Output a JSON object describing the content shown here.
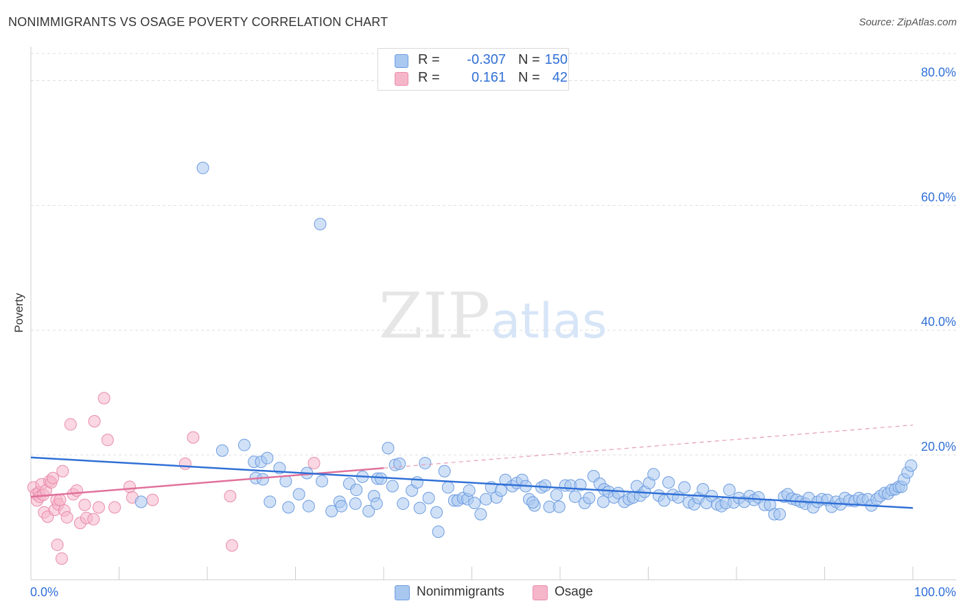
{
  "header": {
    "title": "NONIMMIGRANTS VS OSAGE POVERTY CORRELATION CHART",
    "source": "Source: ZipAtlas.com"
  },
  "watermark": {
    "zip": "ZIP",
    "atlas": "atlas"
  },
  "legend": {
    "rows": [
      {
        "r_label": "R =",
        "r_value": "-0.307",
        "n_label": "N =",
        "n_value": "150",
        "color": "#a9c8f0"
      },
      {
        "r_label": "R =",
        "r_value": "0.161",
        "n_label": "N =",
        "n_value": "42",
        "color": "#f6b6ca"
      }
    ]
  },
  "bottom_legend": {
    "items": [
      {
        "label": "Nonimmigrants",
        "color": "#a9c8f0"
      },
      {
        "label": "Osage",
        "color": "#f6b6ca"
      }
    ]
  },
  "chart_data": {
    "type": "scatter",
    "title": "NONIMMIGRANTS VS OSAGE POVERTY CORRELATION CHART",
    "ylabel": "Poverty",
    "xlabel": "",
    "xlim": [
      0,
      100
    ],
    "ylim": [
      0,
      85
    ],
    "x_tick_labels": [
      "0.0%",
      "100.0%"
    ],
    "y_ticks": [
      20,
      40,
      60,
      80
    ],
    "y_tick_labels": [
      "20.0%",
      "40.0%",
      "60.0%",
      "80.0%"
    ],
    "grid": "horizontal dashed",
    "colors": {
      "nonimmigrants": "#2f6fd6",
      "osage": "#e0709a",
      "tick_label": "#2f6fd6"
    },
    "series": [
      {
        "name": "Nonimmigrants",
        "fill": "#a9c8f0",
        "stroke": "#6b9be0",
        "trend": {
          "x": [
            0,
            100
          ],
          "y": [
            19.6,
            11.5
          ]
        },
        "points": [
          [
            19.5,
            66
          ],
          [
            32.8,
            57
          ],
          [
            12.5,
            12.5
          ],
          [
            21.7,
            20.7
          ],
          [
            24.2,
            21.6
          ],
          [
            25.3,
            18.9
          ],
          [
            26.1,
            18.9
          ],
          [
            26.8,
            19.5
          ],
          [
            25.5,
            16.3
          ],
          [
            26.3,
            16.1
          ],
          [
            28.2,
            17.9
          ],
          [
            29.2,
            11.6
          ],
          [
            27.1,
            12.5
          ],
          [
            28.9,
            15.8
          ],
          [
            30.4,
            13.7
          ],
          [
            31.5,
            11.8
          ],
          [
            31.3,
            17.1
          ],
          [
            33.0,
            15.8
          ],
          [
            34.1,
            11.0
          ],
          [
            35.0,
            12.5
          ],
          [
            35.2,
            11.8
          ],
          [
            36.1,
            15.4
          ],
          [
            36.8,
            12.2
          ],
          [
            36.9,
            14.4
          ],
          [
            37.6,
            16.5
          ],
          [
            38.3,
            11.0
          ],
          [
            38.9,
            13.4
          ],
          [
            39.2,
            12.2
          ],
          [
            39.3,
            16.2
          ],
          [
            39.7,
            16.2
          ],
          [
            40.5,
            21.1
          ],
          [
            41.0,
            15.0
          ],
          [
            41.3,
            18.4
          ],
          [
            41.8,
            18.6
          ],
          [
            42.2,
            12.2
          ],
          [
            43.2,
            14.3
          ],
          [
            43.8,
            15.6
          ],
          [
            44.1,
            11.5
          ],
          [
            44.7,
            18.7
          ],
          [
            45.1,
            13.1
          ],
          [
            46.0,
            10.8
          ],
          [
            46.2,
            7.7
          ],
          [
            46.9,
            17.4
          ],
          [
            47.3,
            14.8
          ],
          [
            48.0,
            12.7
          ],
          [
            48.4,
            12.7
          ],
          [
            49.0,
            13.1
          ],
          [
            49.5,
            12.9
          ],
          [
            49.7,
            14.3
          ],
          [
            50.3,
            12.3
          ],
          [
            51.0,
            10.5
          ],
          [
            51.6,
            12.9
          ],
          [
            52.2,
            14.8
          ],
          [
            52.8,
            13.2
          ],
          [
            53.3,
            14.3
          ],
          [
            53.8,
            16.0
          ],
          [
            54.6,
            15.0
          ],
          [
            55.1,
            15.5
          ],
          [
            55.7,
            16.0
          ],
          [
            56.1,
            15.0
          ],
          [
            56.5,
            12.9
          ],
          [
            57.1,
            11.9
          ],
          [
            57.9,
            14.8
          ],
          [
            58.3,
            15.1
          ],
          [
            58.8,
            11.7
          ],
          [
            59.6,
            13.6
          ],
          [
            59.9,
            11.7
          ],
          [
            60.6,
            15.1
          ],
          [
            61.2,
            15.1
          ],
          [
            61.7,
            13.3
          ],
          [
            62.3,
            15.2
          ],
          [
            62.8,
            12.3
          ],
          [
            63.3,
            13.1
          ],
          [
            63.8,
            16.6
          ],
          [
            64.5,
            15.4
          ],
          [
            65.0,
            14.5
          ],
          [
            65.5,
            14.1
          ],
          [
            66.1,
            13.2
          ],
          [
            66.6,
            13.9
          ],
          [
            67.3,
            12.5
          ],
          [
            67.8,
            12.9
          ],
          [
            68.3,
            13.2
          ],
          [
            68.7,
            15.0
          ],
          [
            69.1,
            13.5
          ],
          [
            69.6,
            14.1
          ],
          [
            70.1,
            15.5
          ],
          [
            70.6,
            16.9
          ],
          [
            71.2,
            13.5
          ],
          [
            71.8,
            12.7
          ],
          [
            72.3,
            15.6
          ],
          [
            72.8,
            13.6
          ],
          [
            73.4,
            13.2
          ],
          [
            74.1,
            14.8
          ],
          [
            74.6,
            12.4
          ],
          [
            75.2,
            12.1
          ],
          [
            75.7,
            13.1
          ],
          [
            76.2,
            14.5
          ],
          [
            76.6,
            12.3
          ],
          [
            77.2,
            13.4
          ],
          [
            77.8,
            12.1
          ],
          [
            78.3,
            11.8
          ],
          [
            78.8,
            12.3
          ],
          [
            79.2,
            14.4
          ],
          [
            79.7,
            12.4
          ],
          [
            80.3,
            13.1
          ],
          [
            80.9,
            12.5
          ],
          [
            81.5,
            13.4
          ],
          [
            82.0,
            12.8
          ],
          [
            82.5,
            13.2
          ],
          [
            83.2,
            12.0
          ],
          [
            83.8,
            12.0
          ],
          [
            84.3,
            10.5
          ],
          [
            84.9,
            10.5
          ],
          [
            85.4,
            13.3
          ],
          [
            85.8,
            13.7
          ],
          [
            86.3,
            13.0
          ],
          [
            86.8,
            12.8
          ],
          [
            87.3,
            12.5
          ],
          [
            87.8,
            12.2
          ],
          [
            88.2,
            13.1
          ],
          [
            88.7,
            11.6
          ],
          [
            89.2,
            12.5
          ],
          [
            89.7,
            12.9
          ],
          [
            90.3,
            12.8
          ],
          [
            90.8,
            11.7
          ],
          [
            91.3,
            12.5
          ],
          [
            91.8,
            12.1
          ],
          [
            92.3,
            13.1
          ],
          [
            92.8,
            12.7
          ],
          [
            93.4,
            12.6
          ],
          [
            93.9,
            13.1
          ],
          [
            94.3,
            12.8
          ],
          [
            94.9,
            12.9
          ],
          [
            95.3,
            11.9
          ],
          [
            95.9,
            12.9
          ],
          [
            96.3,
            13.4
          ],
          [
            96.8,
            13.9
          ],
          [
            97.2,
            13.8
          ],
          [
            97.6,
            14.4
          ],
          [
            98.0,
            14.5
          ],
          [
            98.4,
            14.9
          ],
          [
            98.7,
            14.9
          ],
          [
            99.0,
            16.1
          ],
          [
            99.4,
            17.2
          ],
          [
            99.8,
            18.3
          ],
          [
            56.9,
            12.4
          ],
          [
            64.9,
            12.5
          ]
        ]
      },
      {
        "name": "Osage",
        "fill": "#f6b6ca",
        "stroke": "#e88aab",
        "trend": {
          "x": [
            0,
            40
          ],
          "y": [
            13.3,
            17.9
          ]
        },
        "trend_extended": {
          "x": [
            40,
            100
          ],
          "y": [
            17.9,
            24.8
          ]
        },
        "points": [
          [
            0.3,
            14.8
          ],
          [
            0.6,
            13.7
          ],
          [
            0.7,
            12.7
          ],
          [
            0.9,
            14.0
          ],
          [
            1.0,
            13.3
          ],
          [
            1.2,
            15.3
          ],
          [
            1.4,
            13.6
          ],
          [
            1.5,
            10.8
          ],
          [
            1.7,
            14.3
          ],
          [
            1.9,
            10.1
          ],
          [
            2.1,
            15.8
          ],
          [
            2.3,
            15.6
          ],
          [
            2.5,
            16.3
          ],
          [
            2.7,
            11.2
          ],
          [
            2.9,
            12.8
          ],
          [
            3.1,
            12.1
          ],
          [
            3.3,
            12.8
          ],
          [
            3.0,
            5.6
          ],
          [
            3.6,
            17.4
          ],
          [
            3.8,
            11.1
          ],
          [
            3.5,
            3.4
          ],
          [
            4.1,
            10.0
          ],
          [
            4.5,
            24.9
          ],
          [
            4.8,
            13.7
          ],
          [
            5.2,
            14.3
          ],
          [
            5.6,
            9.1
          ],
          [
            6.1,
            12.0
          ],
          [
            6.3,
            9.9
          ],
          [
            7.1,
            9.7
          ],
          [
            7.2,
            25.4
          ],
          [
            7.7,
            11.6
          ],
          [
            8.3,
            29.1
          ],
          [
            8.7,
            22.4
          ],
          [
            9.5,
            11.6
          ],
          [
            11.2,
            14.9
          ],
          [
            11.5,
            13.2
          ],
          [
            13.8,
            12.8
          ],
          [
            17.5,
            18.6
          ],
          [
            18.4,
            22.8
          ],
          [
            22.6,
            13.4
          ],
          [
            22.8,
            5.5
          ],
          [
            32.1,
            18.7
          ]
        ]
      }
    ]
  }
}
